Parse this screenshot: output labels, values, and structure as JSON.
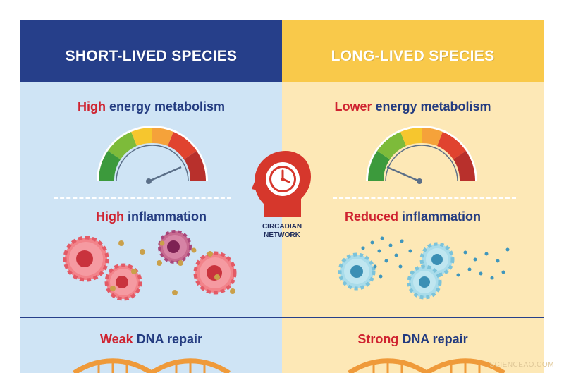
{
  "left": {
    "header": "SHORT-LIVED SPECIES",
    "metabolism": {
      "highlight": "High",
      "rest": " energy metabolism"
    },
    "inflammation": {
      "highlight": "High",
      "rest": " inflammation"
    },
    "dna": {
      "highlight": "Weak",
      "rest": " DNA repair"
    }
  },
  "right": {
    "header": "LONG-LIVED SPECIES",
    "metabolism": {
      "highlight": "Lower",
      "rest": " energy metabolism"
    },
    "inflammation": {
      "highlight": "Reduced",
      "rest": " inflammation"
    },
    "dna": {
      "highlight": "Strong",
      "rest": " DNA repair"
    }
  },
  "center": {
    "line1": "CIRCADIAN",
    "line2": "NETWORK",
    "icon": "head-clock-icon"
  },
  "watermark": "SCIENCEAO.COM",
  "colors": {
    "left_header": "#263f8a",
    "right_header": "#f9c94a",
    "left_bg": "#cfe4f5",
    "right_bg": "#fde8b6",
    "highlight": "#cf2330",
    "text": "#233b80"
  }
}
